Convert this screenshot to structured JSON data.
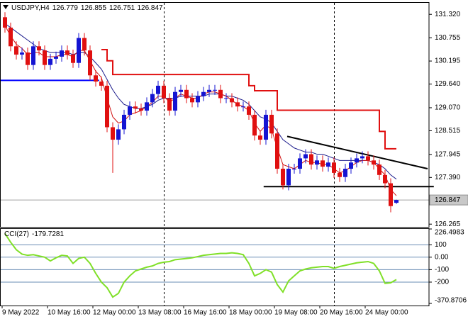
{
  "chart_data": {
    "type": "candlestick",
    "title": "USDJPY,H4",
    "categories": [
      "9 May 2022",
      null,
      null,
      null,
      null,
      null,
      null,
      null,
      "10 May 16:00",
      null,
      null,
      null,
      null,
      null,
      null,
      null,
      "12 May 00:00",
      null,
      null,
      null,
      null,
      null,
      null,
      null,
      "13 May 08:00",
      null,
      null,
      null,
      null,
      null,
      null,
      null,
      "16 May 16:00",
      null,
      null,
      null,
      null,
      null,
      null,
      null,
      "18 May 00:00",
      null,
      null,
      null,
      null,
      null,
      null,
      null,
      "19 May 08:00",
      null,
      null,
      null,
      null,
      null,
      null,
      null,
      "20 May 16:00",
      null,
      null,
      null,
      null,
      null,
      null,
      null,
      "24 May 00:00",
      null,
      null,
      null,
      null,
      null
    ],
    "open": [
      131.25,
      131.0,
      130.55,
      130.35,
      130.4,
      130.1,
      130.55,
      130.45,
      130.1,
      130.25,
      130.3,
      130.45,
      130.35,
      130.15,
      130.75,
      130.45,
      129.85,
      129.7,
      129.6,
      128.6,
      128.3,
      128.55,
      128.9,
      129.1,
      129.05,
      129.0,
      129.2,
      129.4,
      129.6,
      129.3,
      129.0,
      129.45,
      129.5,
      129.3,
      129.2,
      129.35,
      129.45,
      129.5,
      129.5,
      129.3,
      129.3,
      129.2,
      129.1,
      129.1,
      128.9,
      128.4,
      128.3,
      128.9,
      128.45,
      127.6,
      127.2,
      127.6,
      127.6,
      127.85,
      127.95,
      127.7,
      127.8,
      127.65,
      127.75,
      127.5,
      127.4,
      127.6,
      127.75,
      127.85,
      127.9,
      127.8,
      127.7,
      127.45,
      127.25,
      126.779
    ],
    "high": [
      131.37,
      131.12,
      130.67,
      130.52,
      130.52,
      130.67,
      130.67,
      130.57,
      130.37,
      130.42,
      130.57,
      130.57,
      130.47,
      130.87,
      130.87,
      130.57,
      129.97,
      129.82,
      129.72,
      128.72,
      128.67,
      129.02,
      129.22,
      129.22,
      129.17,
      129.32,
      129.52,
      129.72,
      129.72,
      129.42,
      129.57,
      129.62,
      129.62,
      129.42,
      129.47,
      129.57,
      129.62,
      129.62,
      129.62,
      129.42,
      129.42,
      129.32,
      129.22,
      129.22,
      129.02,
      128.52,
      129.02,
      129.02,
      128.57,
      127.72,
      127.72,
      127.72,
      127.97,
      128.07,
      128.07,
      127.92,
      127.92,
      127.87,
      127.87,
      127.62,
      127.72,
      127.87,
      127.97,
      128.02,
      128.02,
      127.92,
      127.82,
      127.57,
      127.37,
      126.855
    ],
    "low": [
      130.88,
      130.43,
      130.23,
      130.23,
      129.98,
      129.98,
      130.33,
      129.98,
      129.98,
      130.13,
      130.18,
      130.23,
      130.03,
      130.03,
      130.33,
      129.73,
      129.58,
      129.48,
      128.48,
      127.5,
      128.18,
      128.43,
      128.78,
      128.93,
      128.88,
      128.88,
      129.08,
      129.28,
      129.18,
      128.88,
      128.88,
      129.33,
      129.18,
      129.08,
      129.08,
      129.23,
      129.33,
      129.38,
      129.18,
      129.18,
      129.08,
      128.98,
      128.98,
      128.78,
      128.28,
      128.18,
      128.18,
      128.33,
      127.48,
      127.1,
      127.08,
      127.48,
      127.48,
      127.73,
      127.58,
      127.58,
      127.53,
      127.53,
      127.38,
      127.28,
      127.28,
      127.48,
      127.63,
      127.73,
      127.68,
      127.58,
      127.33,
      127.13,
      126.55,
      126.751
    ],
    "close": [
      131.0,
      130.55,
      130.35,
      130.4,
      130.1,
      130.55,
      130.45,
      130.1,
      130.25,
      130.3,
      130.45,
      130.35,
      130.15,
      130.75,
      130.45,
      129.85,
      129.7,
      129.6,
      128.6,
      128.3,
      128.55,
      128.9,
      129.1,
      129.05,
      129.0,
      129.2,
      129.4,
      129.6,
      129.3,
      129.0,
      129.45,
      129.5,
      129.3,
      129.2,
      129.35,
      129.45,
      129.5,
      129.5,
      129.3,
      129.3,
      129.2,
      129.1,
      129.1,
      128.9,
      128.4,
      128.3,
      128.9,
      128.45,
      127.6,
      127.2,
      127.6,
      127.6,
      127.85,
      127.95,
      127.7,
      127.8,
      127.65,
      127.75,
      127.5,
      127.4,
      127.6,
      127.75,
      127.85,
      127.9,
      127.8,
      127.7,
      127.45,
      127.25,
      126.7,
      126.847
    ],
    "up_color": "#1414d2",
    "down_color": "#e01010",
    "lines": [
      {
        "color": "#1c1c8c",
        "values": [
          131.1,
          131.0,
          130.9,
          130.8,
          130.7,
          130.6,
          130.5,
          130.45,
          130.4,
          130.4,
          130.4,
          130.4,
          130.35,
          130.4,
          130.4,
          130.3,
          130.15,
          130.0,
          129.75,
          129.5,
          129.3,
          129.15,
          129.1,
          129.05,
          129.05,
          129.1,
          129.15,
          129.25,
          129.3,
          129.3,
          129.3,
          129.35,
          129.35,
          129.35,
          129.35,
          129.35,
          129.4,
          129.4,
          129.4,
          129.35,
          129.35,
          129.3,
          129.25,
          129.15,
          129.0,
          128.85,
          128.8,
          128.7,
          128.5,
          128.3,
          128.2,
          128.1,
          128.05,
          128.0,
          128.0,
          127.95,
          127.95,
          127.9,
          127.85,
          127.8,
          127.8,
          127.8,
          127.8,
          127.8,
          127.8,
          127.75,
          127.7,
          127.6,
          127.45,
          127.35
        ]
      },
      {
        "color": "#d01010",
        "values": [
          131.05,
          130.8,
          130.6,
          130.5,
          130.35,
          130.4,
          130.4,
          130.3,
          130.3,
          130.3,
          130.35,
          130.35,
          130.3,
          130.45,
          130.45,
          130.2,
          129.95,
          129.8,
          129.3,
          128.85,
          128.7,
          128.75,
          128.9,
          128.95,
          129.0,
          129.1,
          129.2,
          129.35,
          129.35,
          129.2,
          129.3,
          129.4,
          129.35,
          129.3,
          129.3,
          129.4,
          129.45,
          129.45,
          129.4,
          129.35,
          129.25,
          129.15,
          129.1,
          129.0,
          128.7,
          128.5,
          128.65,
          128.55,
          128.1,
          127.7,
          127.65,
          127.6,
          127.7,
          127.8,
          127.75,
          127.75,
          127.7,
          127.7,
          127.6,
          127.5,
          127.55,
          127.65,
          127.75,
          127.8,
          127.8,
          127.75,
          127.6,
          127.45,
          127.1,
          126.95
        ]
      },
      {
        "color": "#e01010",
        "step": true,
        "values": [
          null,
          null,
          null,
          null,
          null,
          null,
          null,
          null,
          null,
          null,
          null,
          null,
          null,
          null,
          null,
          null,
          null,
          130.47,
          130.2,
          129.87,
          129.87,
          129.87,
          129.87,
          129.87,
          129.87,
          129.87,
          129.87,
          129.87,
          129.87,
          129.87,
          129.87,
          129.87,
          129.87,
          129.87,
          129.87,
          129.87,
          129.87,
          129.87,
          129.87,
          129.87,
          129.87,
          129.87,
          129.87,
          129.6,
          129.48,
          129.48,
          129.48,
          129.48,
          129.01,
          129.01,
          129.01,
          129.01,
          129.01,
          129.01,
          129.01,
          129.01,
          129.01,
          129.01,
          129.01,
          129.01,
          129.01,
          129.01,
          129.01,
          129.01,
          129.01,
          129.01,
          128.5,
          128.08,
          128.08,
          128.08
        ]
      }
    ],
    "levels": [
      {
        "value": 129.73,
        "color": "#0000ff",
        "x": [
          -0.9,
          16.6
        ]
      },
      {
        "value": 127.17,
        "color": "#000000",
        "x": [
          45.6,
          75.6
        ]
      }
    ],
    "trendlines": [
      {
        "color": "#000000",
        "x": [
          49.75,
          74.5
        ],
        "values": [
          128.38,
          127.6
        ]
      }
    ],
    "ylim": [
      126.2,
      131.58
    ],
    "yticks": [
      {
        "value": 131.32,
        "label": "131.320"
      },
      {
        "value": 130.755,
        "label": "130.755"
      },
      {
        "value": 130.195,
        "label": "130.195"
      },
      {
        "value": 129.64,
        "label": "129.640"
      },
      {
        "value": 129.07,
        "label": "129.070"
      },
      {
        "value": 128.515,
        "label": "128.515"
      },
      {
        "value": 127.945,
        "label": "127.945"
      },
      {
        "value": 127.39,
        "label": "127.390"
      },
      {
        "value": 126.265,
        "label": "126.265"
      }
    ],
    "cci": {
      "label": "CCI(27)",
      "color": "#80e028",
      "values": [
        190,
        120,
        60,
        25,
        15,
        20,
        10,
        0,
        -30,
        -5,
        15,
        10,
        -50,
        -10,
        0,
        -50,
        -130,
        -200,
        -245,
        -320,
        -290,
        -200,
        -150,
        -110,
        -95,
        -80,
        -70,
        -50,
        -40,
        -35,
        -20,
        -15,
        -10,
        -5,
        5,
        15,
        20,
        25,
        30,
        30,
        35,
        30,
        20,
        -50,
        -150,
        -130,
        -100,
        -120,
        -220,
        -280,
        -190,
        -150,
        -110,
        -95,
        -85,
        -80,
        -75,
        -75,
        -90,
        -75,
        -65,
        -55,
        -45,
        -40,
        -35,
        -50,
        -110,
        -210,
        -205,
        -179.7281
      ],
      "ylim": [
        -370.8706,
        226.4983
      ],
      "yticks": [
        226.4983,
        100,
        {
          "value": 0,
          "label": "0.00"
        },
        -100,
        -200,
        -370.8706
      ],
      "level_color": "#6a8db5"
    }
  }
}
